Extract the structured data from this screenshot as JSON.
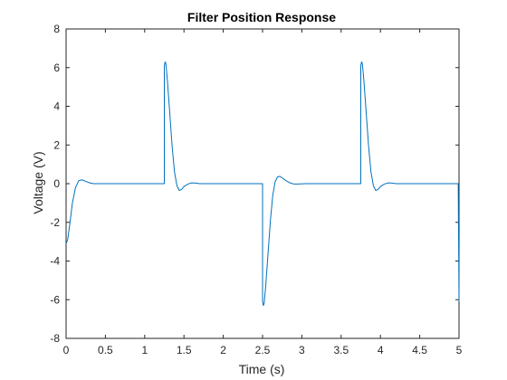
{
  "chart_data": {
    "type": "line",
    "title": "Filter Position Response",
    "xlabel": "Time (s)",
    "ylabel": "Voltage (V)",
    "xlim": [
      0,
      5
    ],
    "ylim": [
      -8,
      8
    ],
    "xticks": [
      0,
      0.5,
      1,
      1.5,
      2,
      2.5,
      3,
      3.5,
      4,
      4.5,
      5
    ],
    "xtick_labels": [
      "0",
      "0.5",
      "1",
      "1.5",
      "2",
      "2.5",
      "3",
      "3.5",
      "4",
      "4.5",
      "5"
    ],
    "yticks": [
      -8,
      -6,
      -4,
      -2,
      0,
      2,
      4,
      6,
      8
    ],
    "ytick_labels": [
      "-8",
      "-6",
      "-4",
      "-2",
      "0",
      "2",
      "4",
      "6",
      "8"
    ],
    "grid": false,
    "series": [
      {
        "color": "#0072BD",
        "x": [
          0,
          0.02,
          0.05,
          0.08,
          0.12,
          0.16,
          0.2,
          0.25,
          0.3,
          0.35,
          0.4,
          0.5,
          0.75,
          1.0,
          1.25,
          1.25,
          1.26,
          1.27,
          1.29,
          1.32,
          1.35,
          1.38,
          1.41,
          1.44,
          1.47,
          1.5,
          1.55,
          1.6,
          1.65,
          1.7,
          1.8,
          2.0,
          2.25,
          2.5,
          2.5,
          2.51,
          2.52,
          2.54,
          2.57,
          2.6,
          2.63,
          2.66,
          2.69,
          2.72,
          2.75,
          2.8,
          2.85,
          2.9,
          2.95,
          3.05,
          3.25,
          3.5,
          3.75,
          3.75,
          3.76,
          3.77,
          3.79,
          3.82,
          3.85,
          3.88,
          3.91,
          3.94,
          3.97,
          4.0,
          4.05,
          4.1,
          4.15,
          4.2,
          4.3,
          4.5,
          4.75,
          4.99,
          5.0
        ],
        "y": [
          -3.1,
          -2.9,
          -2.0,
          -1.0,
          -0.2,
          0.15,
          0.2,
          0.12,
          0.04,
          0.0,
          0.0,
          0.0,
          0.0,
          0.0,
          0.0,
          6.1,
          6.3,
          6.2,
          5.3,
          3.6,
          1.9,
          0.6,
          -0.1,
          -0.35,
          -0.3,
          -0.15,
          -0.02,
          0.04,
          0.03,
          0.0,
          0.0,
          0.0,
          0.0,
          0.0,
          -6.1,
          -6.3,
          -6.2,
          -5.3,
          -3.6,
          -1.9,
          -0.6,
          0.1,
          0.35,
          0.38,
          0.3,
          0.15,
          0.04,
          -0.02,
          -0.02,
          0.0,
          0.0,
          0.0,
          0.0,
          6.1,
          6.3,
          6.2,
          5.3,
          3.6,
          1.9,
          0.6,
          -0.1,
          -0.35,
          -0.3,
          -0.15,
          -0.02,
          0.04,
          0.03,
          0.0,
          0.0,
          0.0,
          0.0,
          0.0,
          -6.1
        ]
      }
    ]
  }
}
